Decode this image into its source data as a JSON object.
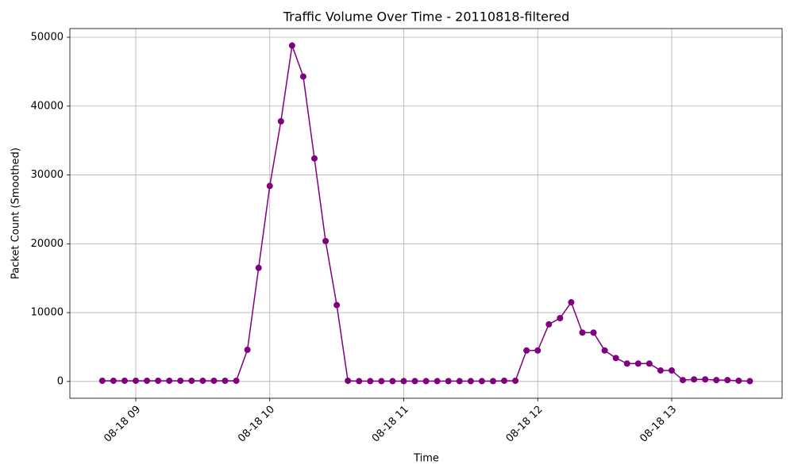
{
  "chart_data": {
    "type": "line",
    "title": "Traffic Volume Over Time - 20110818-filtered",
    "xlabel": "Time",
    "ylabel": "Packet Count (Smoothed)",
    "x": [
      8.75,
      8.8333,
      8.9167,
      9,
      9.0833,
      9.1667,
      9.25,
      9.3333,
      9.4167,
      9.5,
      9.5833,
      9.6667,
      9.75,
      9.8333,
      9.9167,
      10,
      10.0833,
      10.1667,
      10.25,
      10.3333,
      10.4167,
      10.5,
      10.5833,
      10.6667,
      10.75,
      10.8333,
      10.9167,
      11,
      11.0833,
      11.1667,
      11.25,
      11.3333,
      11.4167,
      11.5,
      11.5833,
      11.6667,
      11.75,
      11.8333,
      11.9167,
      12,
      12.0833,
      12.1667,
      12.25,
      12.3333,
      12.4167,
      12.5,
      12.5833,
      12.6667,
      12.75,
      12.8333,
      12.9167,
      13,
      13.0833,
      13.1667,
      13.25,
      13.3333,
      13.4167,
      13.5,
      13.5833
    ],
    "series": [
      {
        "color": "#800080",
        "values": [
          100,
          100,
          100,
          100,
          100,
          100,
          100,
          100,
          100,
          100,
          100,
          100,
          100,
          4600,
          16500,
          28400,
          37800,
          48800,
          44300,
          32400,
          20400,
          11100,
          100,
          50,
          50,
          50,
          50,
          50,
          50,
          50,
          50,
          50,
          50,
          50,
          50,
          50,
          100,
          100,
          4500,
          4500,
          8300,
          9200,
          11500,
          7100,
          7100,
          4500,
          3400,
          2600,
          2600,
          2600,
          1600,
          1600,
          200,
          300,
          300,
          200,
          200,
          100,
          50
        ]
      }
    ],
    "xlim": [
      8.508,
      13.824
    ],
    "xticks": [
      {
        "value": 9,
        "label": "08-18 09"
      },
      {
        "value": 10,
        "label": "08-18 10"
      },
      {
        "value": 11,
        "label": "08-18 11"
      },
      {
        "value": 12,
        "label": "08-18 12"
      },
      {
        "value": 13,
        "label": "08-18 13"
      }
    ],
    "ylim": [
      -2440,
      51270
    ],
    "yticks": [
      0,
      10000,
      20000,
      30000,
      40000,
      50000
    ],
    "grid": true
  }
}
